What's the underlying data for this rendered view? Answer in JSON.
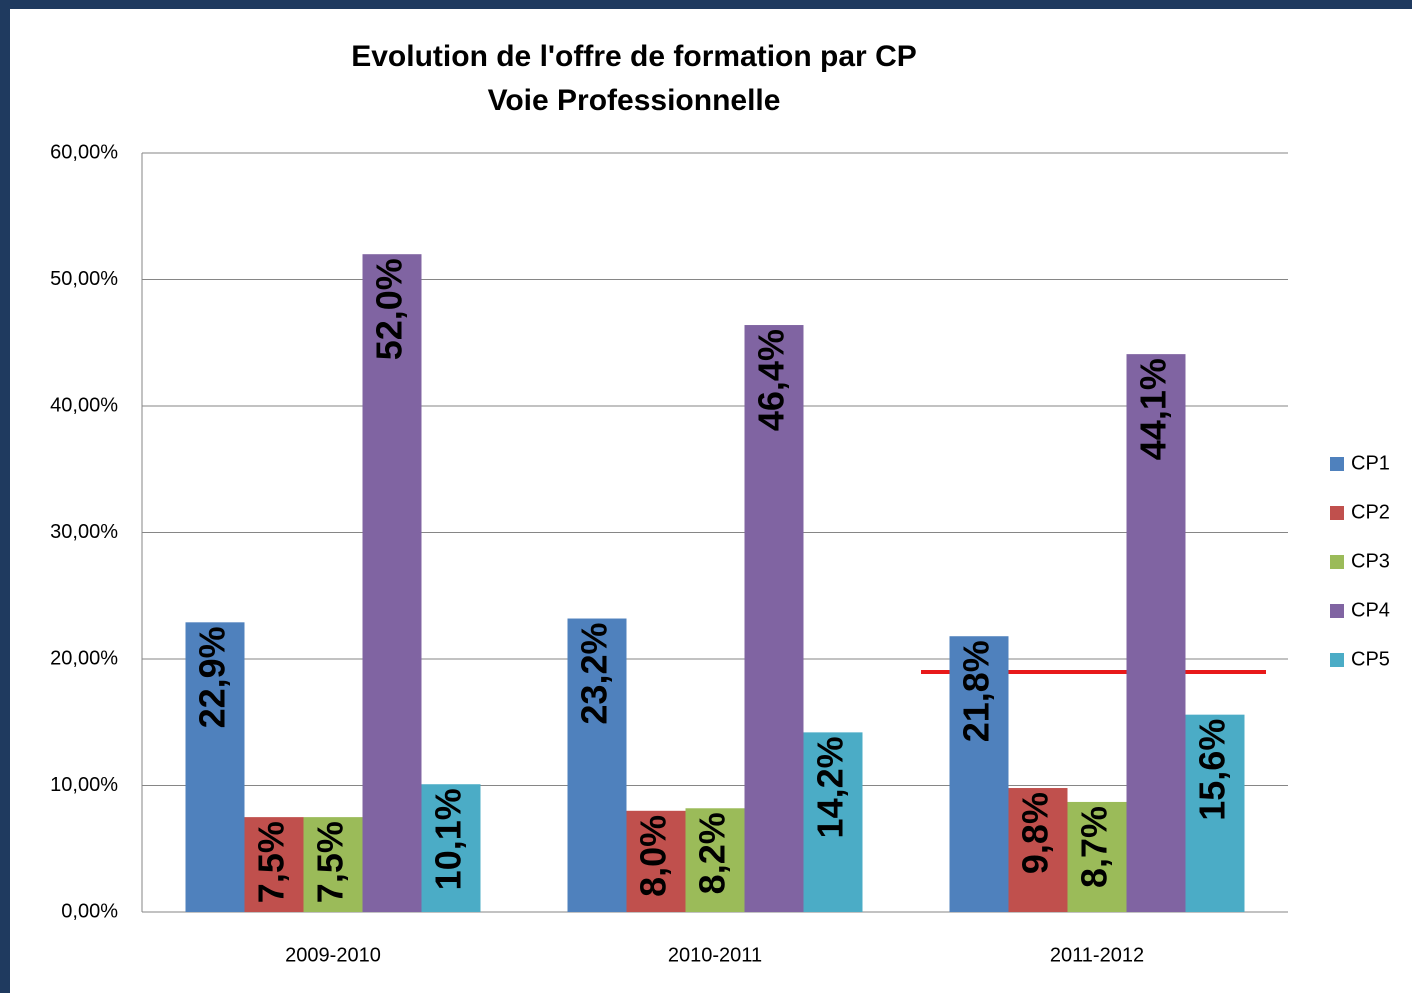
{
  "chart_data": {
    "type": "bar",
    "title": "Evolution de l'offre de formation par CP",
    "subtitle": "Voie Professionnelle",
    "categories": [
      "2009-2010",
      "2010-2011",
      "2011-2012"
    ],
    "series": [
      {
        "name": "CP1",
        "color": "#4f81bd",
        "values": [
          22.9,
          23.2,
          21.8
        ],
        "value_labels": [
          "22,9%",
          "23,2%",
          "21,8%"
        ]
      },
      {
        "name": "CP2",
        "color": "#c0504d",
        "values": [
          7.5,
          8.0,
          9.8
        ],
        "value_labels": [
          "7,5%",
          "8,0%",
          "9,8%"
        ]
      },
      {
        "name": "CP3",
        "color": "#9bbb59",
        "values": [
          7.5,
          8.2,
          8.7
        ],
        "value_labels": [
          "7,5%",
          "8,2%",
          "8,7%"
        ]
      },
      {
        "name": "CP4",
        "color": "#8064a2",
        "values": [
          52.0,
          46.4,
          44.1
        ],
        "value_labels": [
          "52,0%",
          "46,4%",
          "44,1%"
        ]
      },
      {
        "name": "CP5",
        "color": "#4bacc6",
        "values": [
          10.1,
          14.2,
          15.6
        ],
        "value_labels": [
          "10,1%",
          "14,2%",
          "15,6%"
        ]
      }
    ],
    "ylim": [
      0,
      60
    ],
    "yticks": [
      {
        "value": 0,
        "label": "0,00%"
      },
      {
        "value": 10,
        "label": "10,00%"
      },
      {
        "value": 20,
        "label": "20,00%"
      },
      {
        "value": 30,
        "label": "30,00%"
      },
      {
        "value": 40,
        "label": "40,00%"
      },
      {
        "value": 50,
        "label": "50,00%"
      },
      {
        "value": 60,
        "label": "60,00%"
      }
    ],
    "grid": true,
    "legend": "right"
  }
}
